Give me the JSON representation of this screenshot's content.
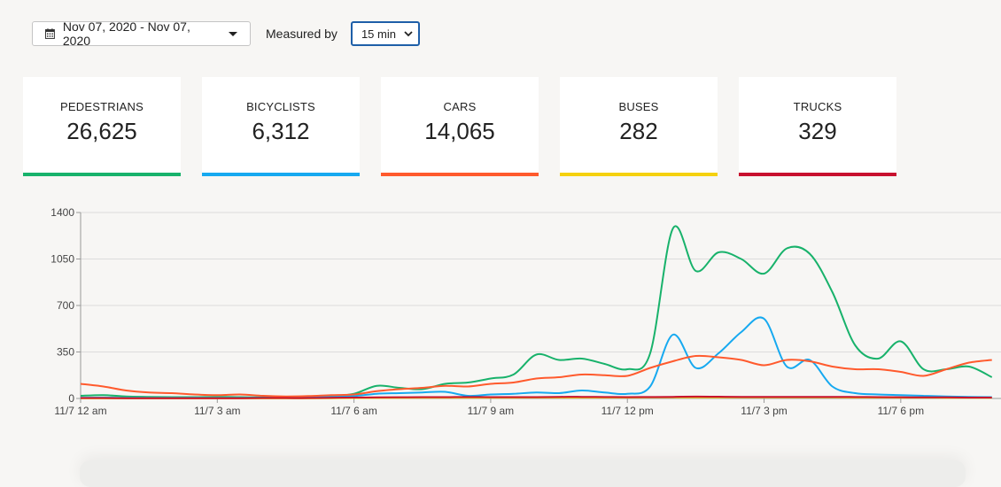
{
  "toolbar": {
    "date_range": "Nov 07, 2020 - Nov 07, 2020",
    "measured_label": "Measured by",
    "interval_value": "15 min",
    "icons": {
      "date": "calendar-icon",
      "date_caret": "caret-down-icon",
      "select": "chevron-down-icon"
    }
  },
  "cards": [
    {
      "label": "PEDESTRIANS",
      "value": "26,625",
      "color": "#18b26b"
    },
    {
      "label": "BICYCLISTS",
      "value": "6,312",
      "color": "#16a9f0"
    },
    {
      "label": "CARS",
      "value": "14,065",
      "color": "#ff5a2d"
    },
    {
      "label": "BUSES",
      "value": "282",
      "color": "#f5d10e"
    },
    {
      "label": "TRUCKS",
      "value": "329",
      "color": "#c8102e"
    }
  ],
  "chart_data": {
    "type": "line",
    "x_unit": "hours since 11/7 12 am",
    "x": [
      0,
      0.5,
      1,
      1.5,
      2,
      2.5,
      3,
      3.5,
      4,
      4.5,
      5,
      5.5,
      6,
      6.5,
      7,
      7.5,
      8,
      8.5,
      9,
      9.5,
      10,
      10.5,
      11,
      11.5,
      12,
      12.5,
      13,
      13.5,
      14,
      14.5,
      15,
      15.5,
      16,
      16.5,
      17,
      17.5,
      18,
      18.5,
      19,
      19.5,
      20
    ],
    "x_ticks": [
      {
        "x": 0,
        "label": "11/7 12 am"
      },
      {
        "x": 3,
        "label": "11/7 3 am"
      },
      {
        "x": 6,
        "label": "11/7 6 am"
      },
      {
        "x": 9,
        "label": "11/7 9 am"
      },
      {
        "x": 12,
        "label": "11/7 12 pm"
      },
      {
        "x": 15,
        "label": "11/7 3 pm"
      },
      {
        "x": 18,
        "label": "11/7 6 pm"
      }
    ],
    "y_ticks": [
      0,
      350,
      700,
      1050,
      1400
    ],
    "ylim": [
      0,
      1400
    ],
    "xlim": [
      0,
      20.2
    ],
    "grid": true,
    "series": [
      {
        "key": "pedestrians",
        "color": "#18b26b",
        "values": [
          20,
          25,
          15,
          12,
          10,
          10,
          12,
          10,
          8,
          8,
          12,
          18,
          35,
          95,
          80,
          70,
          110,
          120,
          150,
          180,
          330,
          290,
          300,
          260,
          220,
          340,
          1280,
          960,
          1100,
          1050,
          940,
          1130,
          1090,
          800,
          400,
          300,
          430,
          220,
          220,
          240,
          160
        ]
      },
      {
        "key": "bicyclists",
        "color": "#16a9f0",
        "values": [
          5,
          6,
          5,
          4,
          4,
          5,
          4,
          4,
          5,
          6,
          8,
          12,
          18,
          35,
          40,
          45,
          50,
          20,
          30,
          35,
          45,
          40,
          60,
          45,
          35,
          90,
          480,
          230,
          340,
          500,
          600,
          240,
          290,
          90,
          40,
          30,
          25,
          20,
          15,
          12,
          10
        ]
      },
      {
        "key": "cars",
        "color": "#ff5a2d",
        "values": [
          110,
          90,
          60,
          45,
          40,
          30,
          25,
          30,
          20,
          15,
          18,
          25,
          30,
          55,
          70,
          80,
          95,
          90,
          110,
          120,
          150,
          160,
          180,
          175,
          170,
          230,
          280,
          320,
          310,
          290,
          250,
          290,
          280,
          240,
          220,
          220,
          200,
          170,
          220,
          270,
          290
        ]
      },
      {
        "key": "buses",
        "color": "#f5d10e",
        "values": [
          1,
          1,
          1,
          1,
          1,
          1,
          1,
          1,
          1,
          1,
          1,
          2,
          3,
          4,
          5,
          6,
          6,
          6,
          6,
          6,
          7,
          7,
          7,
          7,
          7,
          8,
          8,
          8,
          8,
          8,
          8,
          8,
          8,
          8,
          7,
          7,
          6,
          6,
          5,
          5,
          5
        ]
      },
      {
        "key": "trucks",
        "color": "#c8102e",
        "values": [
          3,
          3,
          2,
          2,
          2,
          2,
          2,
          2,
          3,
          3,
          3,
          5,
          7,
          8,
          9,
          10,
          10,
          11,
          10,
          10,
          10,
          12,
          12,
          11,
          10,
          11,
          12,
          14,
          13,
          12,
          12,
          12,
          12,
          12,
          11,
          10,
          9,
          8,
          8,
          7,
          7
        ]
      }
    ]
  }
}
